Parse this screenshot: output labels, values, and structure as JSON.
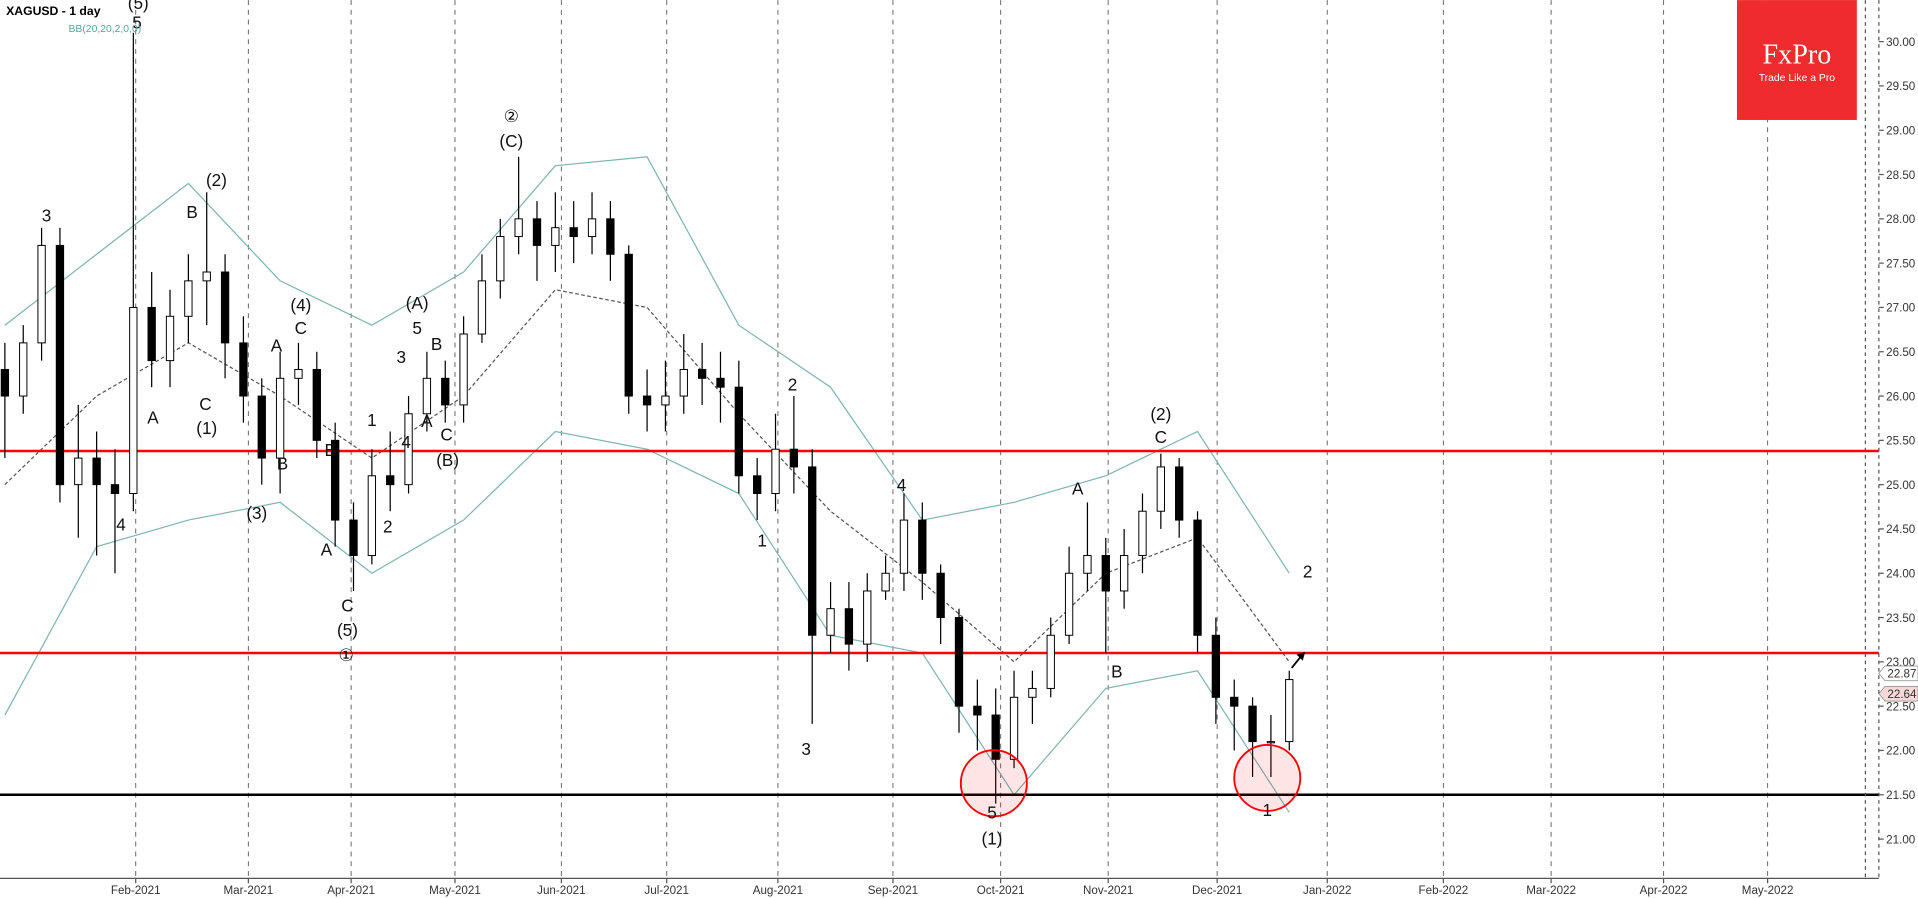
{
  "chart_data": {
    "type": "candlestick",
    "title": "XAGUSD - 1 day",
    "up_color": "#ffffff",
    "down_color": "#000000",
    "x": [
      0,
      1,
      2,
      3,
      4,
      5,
      6,
      7,
      8,
      9,
      10,
      11,
      12,
      13,
      14,
      15,
      16,
      17,
      18,
      19,
      20,
      21,
      22,
      23,
      24,
      25,
      26,
      27,
      28,
      29,
      30,
      31,
      32,
      33,
      34,
      35,
      36,
      37,
      38,
      39,
      40,
      41,
      42,
      43,
      44,
      45,
      46,
      47,
      48,
      49,
      50,
      51,
      52,
      53,
      54,
      55,
      56,
      57,
      58,
      59,
      60,
      61,
      62,
      63,
      64,
      65,
      66,
      67,
      68,
      69,
      70
    ],
    "open": [
      26.3,
      26.0,
      26.6,
      27.7,
      25.0,
      25.3,
      25.0,
      24.9,
      27.0,
      26.4,
      26.9,
      27.3,
      27.4,
      26.6,
      26.0,
      25.3,
      26.2,
      26.3,
      25.5,
      24.6,
      24.2,
      25.1,
      25.0,
      25.8,
      26.2,
      25.9,
      26.7,
      27.3,
      27.8,
      28.0,
      27.7,
      27.9,
      27.8,
      28.0,
      27.6,
      26.0,
      25.9,
      26.0,
      26.3,
      26.2,
      26.1,
      25.1,
      24.9,
      25.4,
      25.2,
      23.3,
      23.6,
      23.2,
      23.8,
      24.0,
      24.6,
      24.0,
      23.5,
      22.5,
      22.4,
      21.9,
      22.6,
      22.7,
      23.3,
      24.0,
      24.2,
      23.8,
      24.2,
      24.7,
      25.2,
      24.6,
      23.3,
      22.6,
      22.5,
      22.1,
      22.1
    ],
    "high": [
      26.6,
      26.8,
      27.9,
      27.9,
      25.9,
      25.6,
      25.4,
      30.1,
      27.4,
      27.2,
      27.6,
      28.3,
      27.6,
      26.9,
      26.2,
      26.5,
      26.6,
      26.5,
      25.7,
      24.8,
      25.4,
      25.6,
      26.0,
      26.5,
      26.4,
      26.9,
      27.6,
      28.0,
      28.7,
      28.2,
      28.3,
      28.2,
      28.3,
      28.2,
      27.7,
      26.3,
      26.4,
      26.7,
      26.6,
      26.5,
      26.4,
      25.3,
      25.8,
      26.0,
      25.4,
      23.9,
      23.9,
      24.0,
      24.2,
      24.9,
      24.8,
      24.1,
      23.6,
      22.8,
      22.7,
      22.9,
      22.9,
      23.5,
      24.3,
      24.8,
      24.4,
      24.5,
      24.9,
      25.35,
      25.3,
      24.7,
      23.5,
      22.8,
      22.6,
      22.4,
      22.9
    ],
    "low": [
      25.3,
      25.8,
      26.4,
      24.8,
      24.4,
      24.2,
      24.0,
      24.7,
      26.1,
      26.1,
      26.6,
      26.8,
      26.2,
      25.7,
      25.0,
      24.9,
      25.9,
      25.3,
      24.3,
      23.8,
      24.1,
      24.7,
      24.9,
      25.6,
      25.7,
      25.7,
      26.6,
      27.1,
      27.6,
      27.3,
      27.4,
      27.5,
      27.6,
      27.3,
      25.8,
      25.6,
      25.6,
      25.8,
      25.9,
      25.7,
      24.9,
      24.6,
      24.7,
      24.9,
      22.3,
      23.1,
      22.9,
      23.0,
      23.7,
      23.8,
      23.7,
      23.2,
      22.2,
      22.0,
      21.4,
      21.8,
      22.3,
      22.6,
      23.2,
      23.8,
      23.1,
      23.6,
      24.0,
      24.5,
      24.4,
      23.1,
      22.3,
      22.0,
      21.7,
      21.7,
      22.0
    ],
    "close": [
      26.0,
      26.6,
      27.7,
      25.0,
      25.3,
      25.0,
      24.9,
      27.0,
      26.4,
      26.9,
      27.3,
      27.4,
      26.6,
      26.0,
      25.3,
      26.2,
      26.3,
      25.5,
      24.6,
      24.2,
      25.1,
      25.0,
      25.8,
      26.2,
      25.9,
      26.7,
      27.3,
      27.8,
      28.0,
      27.7,
      27.9,
      27.8,
      28.0,
      27.6,
      26.0,
      25.9,
      26.0,
      26.3,
      26.2,
      26.1,
      25.1,
      24.9,
      25.4,
      25.2,
      23.3,
      23.6,
      23.2,
      23.8,
      24.0,
      24.6,
      24.0,
      23.5,
      22.5,
      22.4,
      21.9,
      22.6,
      22.7,
      23.3,
      24.0,
      24.2,
      23.8,
      24.2,
      24.7,
      25.2,
      24.6,
      23.3,
      22.6,
      22.5,
      22.1,
      22.1,
      22.8
    ],
    "bands": {
      "name": "BB(20,20,2,0,0)",
      "color": "#7fb3b3",
      "middle_color": "#555555",
      "x": [
        0,
        5,
        10,
        15,
        20,
        25,
        30,
        35,
        40,
        45,
        50,
        55,
        60,
        65,
        70
      ],
      "upper": [
        26.8,
        27.6,
        28.4,
        27.3,
        26.8,
        27.4,
        28.6,
        28.7,
        26.8,
        26.1,
        24.6,
        24.8,
        25.1,
        25.6,
        24.0
      ],
      "middle": [
        25.0,
        26.0,
        26.6,
        26.0,
        25.3,
        26.0,
        27.2,
        27.0,
        25.8,
        24.7,
        23.9,
        23.0,
        24.0,
        24.4,
        23.0
      ],
      "lower": [
        22.4,
        24.3,
        24.6,
        24.8,
        24.0,
        24.6,
        25.6,
        25.4,
        24.9,
        23.3,
        23.1,
        21.5,
        22.7,
        22.9,
        21.3
      ]
    },
    "xlim": [
      -0.2667,
      101.7333
    ],
    "xticks": [
      {
        "value": 7.13,
        "label": "Feb-2021"
      },
      {
        "value": 13.27,
        "label": "Mar-2021"
      },
      {
        "value": 18.87,
        "label": "Apr-2021"
      },
      {
        "value": 24.53,
        "label": "May-2021"
      },
      {
        "value": 30.33,
        "label": "Jun-2021"
      },
      {
        "value": 36.07,
        "label": "Jul-2021"
      },
      {
        "value": 42.13,
        "label": "Aug-2021"
      },
      {
        "value": 48.4,
        "label": "Sep-2021"
      },
      {
        "value": 54.27,
        "label": "Oct-2021"
      },
      {
        "value": 60.13,
        "label": "Nov-2021"
      },
      {
        "value": 66.07,
        "label": "Dec-2021"
      },
      {
        "value": 72.07,
        "label": "Jan-2022"
      },
      {
        "value": 78.4,
        "label": "Feb-2022"
      },
      {
        "value": 84.27,
        "label": "Mar-2022"
      },
      {
        "value": 90.4,
        "label": "Apr-2022"
      },
      {
        "value": 96.07,
        "label": "May-2022"
      }
    ],
    "ylim": [
      20.667,
      30.469
    ],
    "yticks": [
      {
        "value": 21,
        "label": "21.00"
      },
      {
        "value": 21.5,
        "label": "21.50"
      },
      {
        "value": 22,
        "label": "22.00"
      },
      {
        "value": 22.5,
        "label": "22.50"
      },
      {
        "value": 23,
        "label": "23.00"
      },
      {
        "value": 23.5,
        "label": "23.50"
      },
      {
        "value": 24,
        "label": "24.00"
      },
      {
        "value": 24.5,
        "label": "24.50"
      },
      {
        "value": 25,
        "label": "25.00"
      },
      {
        "value": 25.5,
        "label": "25.50"
      },
      {
        "value": 26,
        "label": "26.00"
      },
      {
        "value": 26.5,
        "label": "26.50"
      },
      {
        "value": 27,
        "label": "27.00"
      },
      {
        "value": 27.5,
        "label": "27.50"
      },
      {
        "value": 28,
        "label": "28.00"
      },
      {
        "value": 28.5,
        "label": "28.50"
      },
      {
        "value": 29,
        "label": "29.00"
      },
      {
        "value": 29.5,
        "label": "29.50"
      },
      {
        "value": 30,
        "label": "30.00"
      }
    ],
    "grid": true,
    "hlines": [
      {
        "value": 25.38,
        "color": "#ff0000"
      },
      {
        "value": 23.1,
        "color": "#ff0000"
      },
      {
        "value": 21.5,
        "color": "#000000"
      }
    ],
    "circles": [
      {
        "x": 53.9,
        "y": 21.63,
        "color": "#ff0000"
      },
      {
        "x": 68.8,
        "y": 21.69,
        "color": "#ff0000"
      }
    ],
    "price_tags": [
      22.87,
      22.64
    ],
    "annotations": [
      {
        "text": "3",
        "x": 2.27,
        "y": 28.04
      },
      {
        "text": "(5)",
        "x": 7.27,
        "y": 30.44
      },
      {
        "text": "5",
        "x": 7.2,
        "y": 30.22
      },
      {
        "text": "A",
        "x": 8.07,
        "y": 25.76
      },
      {
        "text": "4",
        "x": 6.33,
        "y": 24.55
      },
      {
        "text": "(2)",
        "x": 11.53,
        "y": 28.44
      },
      {
        "text": "B",
        "x": 10.2,
        "y": 28.08
      },
      {
        "text": "C",
        "x": 10.93,
        "y": 25.91
      },
      {
        "text": "(1)",
        "x": 11.0,
        "y": 25.64
      },
      {
        "text": "(3)",
        "x": 13.73,
        "y": 24.68
      },
      {
        "text": "B",
        "x": 15.13,
        "y": 25.24
      },
      {
        "text": "(4)",
        "x": 16.13,
        "y": 27.03
      },
      {
        "text": "C",
        "x": 16.13,
        "y": 26.77
      },
      {
        "text": "A",
        "x": 14.8,
        "y": 26.57
      },
      {
        "text": "B",
        "x": 17.73,
        "y": 25.39
      },
      {
        "text": "A",
        "x": 17.53,
        "y": 24.27
      },
      {
        "text": "C",
        "x": 18.67,
        "y": 23.64
      },
      {
        "text": "(5)",
        "x": 18.67,
        "y": 23.36
      },
      {
        "text": "①",
        "x": 18.6,
        "y": 23.08
      },
      {
        "text": "1",
        "x": 20.0,
        "y": 25.73
      },
      {
        "text": "2",
        "x": 20.87,
        "y": 24.53
      },
      {
        "text": "4",
        "x": 21.87,
        "y": 25.48
      },
      {
        "text": "3",
        "x": 21.6,
        "y": 26.44
      },
      {
        "text": "5",
        "x": 22.47,
        "y": 26.77
      },
      {
        "text": "(A)",
        "x": 22.47,
        "y": 27.05
      },
      {
        "text": "B",
        "x": 23.53,
        "y": 26.59
      },
      {
        "text": "A",
        "x": 23.0,
        "y": 25.72
      },
      {
        "text": "C",
        "x": 24.07,
        "y": 25.57
      },
      {
        "text": "(B)",
        "x": 24.13,
        "y": 25.28
      },
      {
        "text": "②",
        "x": 27.6,
        "y": 29.16
      },
      {
        "text": "(C)",
        "x": 27.6,
        "y": 28.88
      },
      {
        "text": "2",
        "x": 42.93,
        "y": 26.13
      },
      {
        "text": "1",
        "x": 41.27,
        "y": 24.37
      },
      {
        "text": "3",
        "x": 43.67,
        "y": 22.02
      },
      {
        "text": "4",
        "x": 48.87,
        "y": 25.0
      },
      {
        "text": "5",
        "x": 53.8,
        "y": 21.3
      },
      {
        "text": "(1)",
        "x": 53.8,
        "y": 21.01
      },
      {
        "text": "A",
        "x": 58.47,
        "y": 24.96
      },
      {
        "text": "B",
        "x": 60.6,
        "y": 22.89
      },
      {
        "text": "(2)",
        "x": 63.0,
        "y": 25.8
      },
      {
        "text": "C",
        "x": 63.0,
        "y": 25.54
      },
      {
        "text": "2",
        "x": 71.0,
        "y": 24.02
      },
      {
        "text": "1",
        "x": 68.8,
        "y": 21.33
      }
    ]
  },
  "logo": {
    "name": "FxPro",
    "tagline": "Trade Like a Pro"
  }
}
